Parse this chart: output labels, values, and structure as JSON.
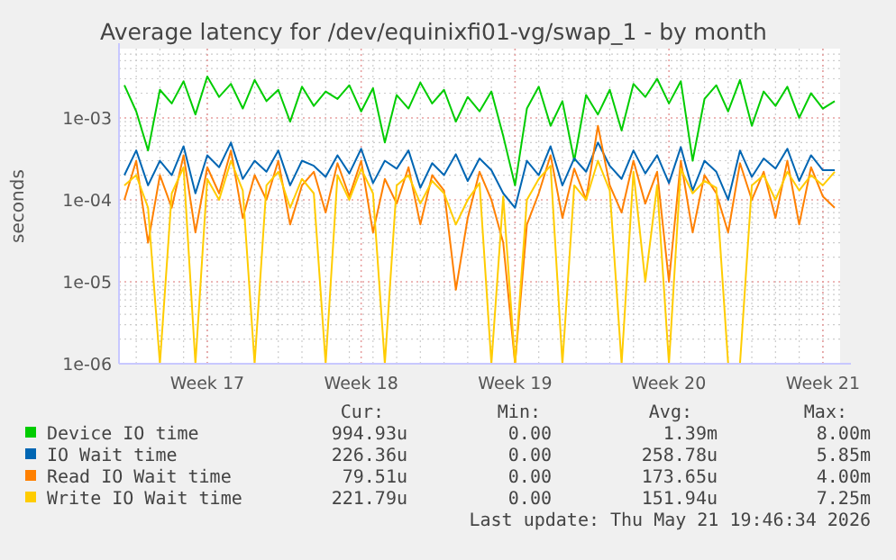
{
  "chart_data": {
    "type": "line",
    "title": "Average latency for /dev/equinixfi01-vg/swap_1 - by month",
    "ylabel": "seconds",
    "log": "y",
    "grid": true,
    "legend": "bottom",
    "marker": "none",
    "line_style": "solid",
    "categories": [
      null,
      null,
      null,
      null,
      null,
      null,
      null,
      "Week 17",
      null,
      null,
      null,
      null,
      null,
      null,
      null,
      null,
      null,
      null,
      null,
      null,
      "Week 18",
      null,
      null,
      null,
      null,
      null,
      null,
      null,
      null,
      null,
      null,
      null,
      null,
      "Week 19",
      null,
      null,
      null,
      null,
      null,
      null,
      null,
      null,
      null,
      null,
      null,
      null,
      "Week 20",
      null,
      null,
      null,
      null,
      null,
      null,
      null,
      null,
      null,
      null,
      null,
      null,
      "Week 21",
      null
    ],
    "ylim": [
      1e-06,
      0.007
    ],
    "yticks": [
      {
        "value": 1e-06,
        "label": "1e-06"
      },
      {
        "value": 1e-05,
        "label": "1e-05"
      },
      {
        "value": 0.0001,
        "label": "1e-04"
      },
      {
        "value": 0.001,
        "label": "1e-03"
      }
    ],
    "series": [
      {
        "name": "Device IO time",
        "color": "#00cc00",
        "values": [
          0.0025,
          0.0012,
          0.0004,
          0.0022,
          0.0015,
          0.0028,
          0.0011,
          0.0032,
          0.0018,
          0.0026,
          0.0013,
          0.0029,
          0.0016,
          0.0022,
          0.0009,
          0.0024,
          0.0014,
          0.0021,
          0.0017,
          0.0025,
          0.0012,
          0.0023,
          0.0005,
          0.0019,
          0.0013,
          0.0027,
          0.0015,
          0.0022,
          0.0009,
          0.0018,
          0.0012,
          0.0021,
          0.0006,
          0.00015,
          0.0013,
          0.0024,
          0.0008,
          0.0016,
          0.0003,
          0.0019,
          0.0011,
          0.0022,
          0.0007,
          0.0026,
          0.0018,
          0.003,
          0.0015,
          0.0028,
          0.0003,
          0.0017,
          0.0025,
          0.0012,
          0.0029,
          0.0008,
          0.0021,
          0.0014,
          0.0024,
          0.001,
          0.002,
          0.0013,
          0.0016
        ]
      },
      {
        "name": "IO Wait time",
        "color": "#0066b3",
        "values": [
          0.0002,
          0.0004,
          0.00015,
          0.0003,
          0.0002,
          0.00045,
          0.00012,
          0.00035,
          0.00025,
          0.0005,
          0.00018,
          0.0003,
          0.00022,
          0.0004,
          0.00015,
          0.0003,
          0.00026,
          0.00019,
          0.00035,
          0.00021,
          0.00042,
          0.00016,
          0.0003,
          0.00024,
          0.0004,
          0.00014,
          0.00028,
          0.0002,
          0.00036,
          0.00017,
          0.00032,
          0.00023,
          0.00012,
          8e-05,
          0.0003,
          0.0002,
          0.00045,
          0.00015,
          0.00032,
          0.00022,
          0.0005,
          0.00026,
          0.00018,
          0.0004,
          0.00021,
          0.00035,
          0.00016,
          0.00044,
          0.00013,
          0.0003,
          0.00022,
          0.0001,
          0.0004,
          0.00019,
          0.00032,
          0.00024,
          0.00042,
          0.00017,
          0.00035,
          0.00023,
          0.00023
        ]
      },
      {
        "name": "Read IO Wait time",
        "color": "#ff8000",
        "values": [
          0.0001,
          0.0003,
          3e-05,
          0.0002,
          8e-05,
          0.00035,
          4e-05,
          0.00025,
          0.00012,
          0.0004,
          6e-05,
          0.0002,
          0.0001,
          0.0003,
          5e-05,
          0.00015,
          0.00022,
          7e-05,
          0.00028,
          0.00011,
          0.0003,
          4e-05,
          0.00018,
          9e-05,
          0.00025,
          5e-05,
          0.0002,
          0.00013,
          8e-06,
          6e-05,
          0.00022,
          0.0001,
          3e-05,
          1e-06,
          5e-05,
          0.00012,
          0.00035,
          6e-05,
          0.00024,
          0.0001,
          0.0008,
          0.00015,
          7e-05,
          0.0003,
          9e-05,
          0.00022,
          1e-05,
          0.0003,
          4e-05,
          0.0002,
          0.00012,
          4e-05,
          0.00028,
          0.0001,
          0.00022,
          6e-05,
          0.0003,
          5e-05,
          0.00025,
          0.00011,
          8e-05
        ]
      },
      {
        "name": "Write IO Wait time",
        "color": "#ffcc00",
        "values": [
          0.00015,
          0.0002,
          8e-05,
          1e-06,
          0.00012,
          0.00025,
          1e-06,
          0.00018,
          0.0001,
          0.0003,
          0.00013,
          1e-06,
          0.00015,
          0.00022,
          8e-05,
          0.00018,
          0.00012,
          1e-06,
          0.0002,
          0.0001,
          0.00024,
          0.00012,
          1e-06,
          0.00015,
          0.0002,
          9e-05,
          0.00017,
          0.00012,
          5e-05,
          0.0001,
          0.00016,
          1e-06,
          0.00011,
          1e-06,
          0.0001,
          0.00018,
          0.00026,
          1e-06,
          0.00015,
          0.0001,
          0.0003,
          0.00013,
          1e-06,
          0.00022,
          1e-05,
          0.00015,
          1e-06,
          0.00024,
          0.00012,
          0.00017,
          0.00014,
          1e-06,
          1e-06,
          0.00015,
          0.0002,
          0.0001,
          0.00022,
          0.00013,
          0.0002,
          0.00015,
          0.00022
        ]
      }
    ],
    "annotations": [
      "Cur:",
      "Min:",
      "Avg:",
      "Max:",
      "994.93u",
      "0.00",
      "1.39m",
      "8.00m",
      "226.36u",
      "0.00",
      "258.78u",
      "5.85m",
      "79.51u",
      "0.00",
      "173.65u",
      "4.00m",
      "221.79u",
      "0.00",
      "151.94u",
      "7.25m",
      "Last update: Thu May 21 19:46:34 2026"
    ]
  }
}
